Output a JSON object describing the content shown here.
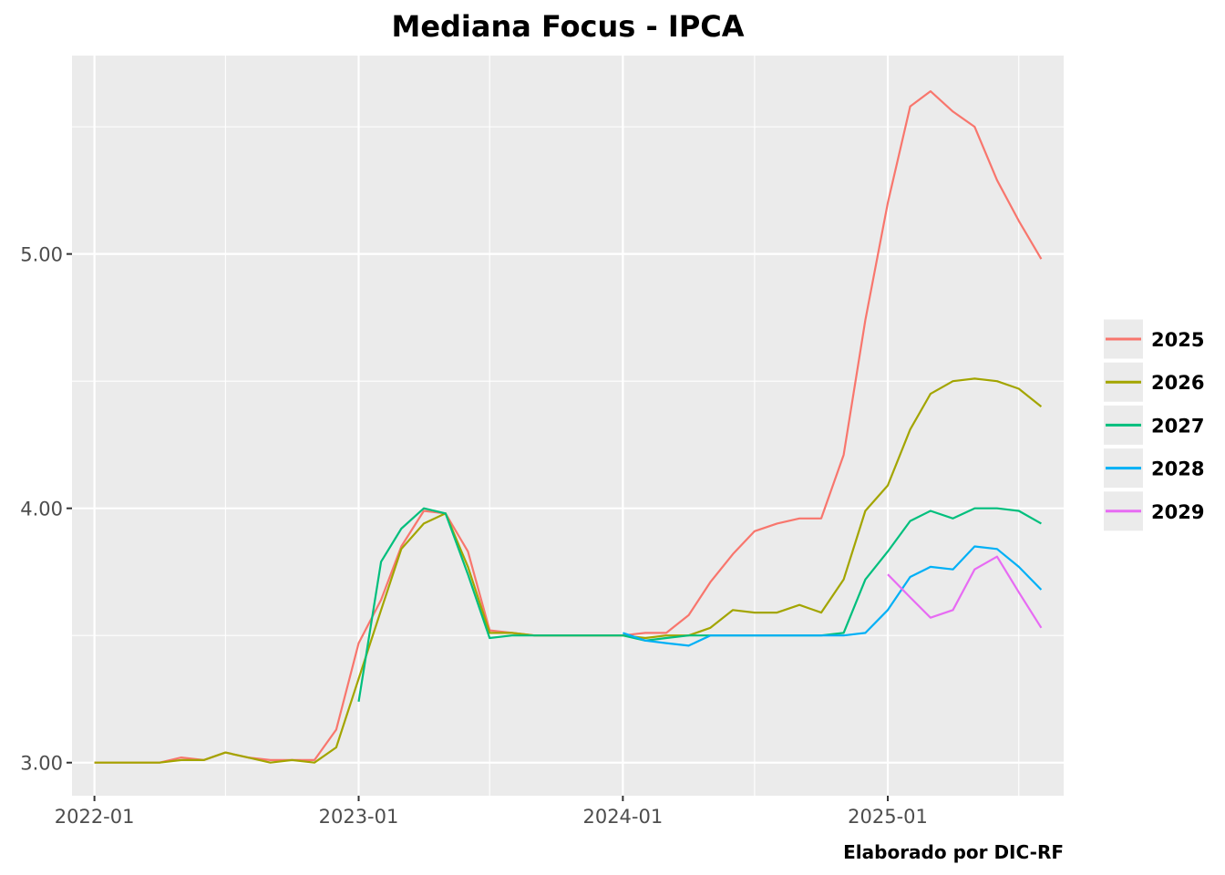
{
  "chart_data": {
    "type": "line",
    "title": "Mediana Focus - IPCA",
    "caption": "Elaborado por DIC-RF",
    "xlabel": "",
    "ylabel": "",
    "x_ticks": [
      "2022-01",
      "2023-01",
      "2024-01",
      "2025-01"
    ],
    "y_ticks": [
      "3.00",
      "4.00",
      "5.00"
    ],
    "xlim": [
      "2021-12-01",
      "2025-09-01"
    ],
    "ylim": [
      2.87,
      5.78
    ],
    "grid": true,
    "legend_position": "right",
    "series": [
      {
        "name": "2025",
        "color": "#F8766D",
        "points": [
          [
            "2024-01-01",
            3.5
          ],
          [
            "2024-02-01",
            3.51
          ],
          [
            "2024-03-01",
            3.51
          ],
          [
            "2024-04-01",
            3.58
          ],
          [
            "2024-05-01",
            3.71
          ],
          [
            "2024-06-01",
            3.82
          ],
          [
            "2024-07-01",
            3.91
          ],
          [
            "2024-08-01",
            3.94
          ],
          [
            "2024-09-01",
            3.96
          ],
          [
            "2024-10-01",
            3.96
          ],
          [
            "2024-11-01",
            4.21
          ],
          [
            "2024-12-01",
            4.74
          ],
          [
            "2025-01-01",
            5.2
          ],
          [
            "2025-02-01",
            5.58
          ],
          [
            "2025-03-01",
            5.64
          ],
          [
            "2025-04-01",
            5.56
          ],
          [
            "2025-05-01",
            5.5
          ],
          [
            "2025-06-01",
            5.29
          ],
          [
            "2025-07-01",
            5.13
          ],
          [
            "2025-08-01",
            4.98
          ]
        ]
      },
      {
        "name": "2026",
        "color": "#A3A500",
        "points": [
          [
            "2024-01-01",
            3.5
          ],
          [
            "2024-02-01",
            3.49
          ],
          [
            "2024-03-01",
            3.5
          ],
          [
            "2024-04-01",
            3.5
          ],
          [
            "2024-05-01",
            3.53
          ],
          [
            "2024-06-01",
            3.6
          ],
          [
            "2024-07-01",
            3.59
          ],
          [
            "2024-08-01",
            3.59
          ],
          [
            "2024-09-01",
            3.62
          ],
          [
            "2024-10-01",
            3.59
          ],
          [
            "2024-11-01",
            3.72
          ],
          [
            "2024-12-01",
            3.99
          ],
          [
            "2025-01-01",
            4.09
          ],
          [
            "2025-02-01",
            4.31
          ],
          [
            "2025-03-01",
            4.45
          ],
          [
            "2025-04-01",
            4.5
          ],
          [
            "2025-05-01",
            4.51
          ],
          [
            "2025-06-01",
            4.5
          ],
          [
            "2025-07-01",
            4.47
          ],
          [
            "2025-08-01",
            4.4
          ]
        ]
      },
      {
        "name": "2027",
        "color": "#00BF7D",
        "points": [
          [
            "2024-01-01",
            3.5
          ],
          [
            "2024-02-01",
            3.48
          ],
          [
            "2024-03-01",
            3.49
          ],
          [
            "2024-04-01",
            3.5
          ],
          [
            "2024-05-01",
            3.5
          ],
          [
            "2024-06-01",
            3.5
          ],
          [
            "2024-07-01",
            3.5
          ],
          [
            "2024-08-01",
            3.5
          ],
          [
            "2024-09-01",
            3.5
          ],
          [
            "2024-10-01",
            3.5
          ],
          [
            "2024-11-01",
            3.51
          ],
          [
            "2024-12-01",
            3.72
          ],
          [
            "2025-01-01",
            3.83
          ],
          [
            "2025-02-01",
            3.95
          ],
          [
            "2025-03-01",
            3.99
          ],
          [
            "2025-04-01",
            3.96
          ],
          [
            "2025-05-01",
            4.0
          ],
          [
            "2025-06-01",
            4.0
          ],
          [
            "2025-07-01",
            3.99
          ],
          [
            "2025-08-01",
            3.94
          ]
        ]
      },
      {
        "name": "2028",
        "color": "#00B0F6",
        "points": [
          [
            "2024-01-01",
            3.51
          ],
          [
            "2024-02-01",
            3.48
          ],
          [
            "2024-03-01",
            3.47
          ],
          [
            "2024-04-01",
            3.46
          ],
          [
            "2024-05-01",
            3.5
          ],
          [
            "2024-06-01",
            3.5
          ],
          [
            "2024-07-01",
            3.5
          ],
          [
            "2024-08-01",
            3.5
          ],
          [
            "2024-09-01",
            3.5
          ],
          [
            "2024-10-01",
            3.5
          ],
          [
            "2024-11-01",
            3.5
          ],
          [
            "2024-12-01",
            3.51
          ],
          [
            "2025-01-01",
            3.6
          ],
          [
            "2025-02-01",
            3.73
          ],
          [
            "2025-03-01",
            3.77
          ],
          [
            "2025-04-01",
            3.76
          ],
          [
            "2025-05-01",
            3.85
          ],
          [
            "2025-06-01",
            3.84
          ],
          [
            "2025-07-01",
            3.77
          ],
          [
            "2025-08-01",
            3.68
          ]
        ]
      },
      {
        "name": "2029",
        "color": "#E76BF3",
        "points": [
          [
            "2025-01-01",
            3.74
          ],
          [
            "2025-02-01",
            3.65
          ],
          [
            "2025-03-01",
            3.57
          ],
          [
            "2025-04-01",
            3.6
          ],
          [
            "2025-05-01",
            3.76
          ],
          [
            "2025-06-01",
            3.81
          ],
          [
            "2025-07-01",
            3.67
          ],
          [
            "2025-08-01",
            3.53
          ]
        ]
      },
      {
        "name": "",
        "color": "#F8766D",
        "points": [
          [
            "2022-01-01",
            3.0
          ],
          [
            "2022-02-01",
            3.0
          ],
          [
            "2022-03-01",
            3.0
          ],
          [
            "2022-04-01",
            3.0
          ],
          [
            "2022-05-01",
            3.02
          ],
          [
            "2022-06-01",
            3.01
          ],
          [
            "2022-07-01",
            3.04
          ],
          [
            "2022-08-01",
            3.02
          ],
          [
            "2022-09-01",
            3.01
          ],
          [
            "2022-10-01",
            3.01
          ],
          [
            "2022-11-01",
            3.01
          ],
          [
            "2022-12-01",
            3.13
          ],
          [
            "2023-01-01",
            3.47
          ],
          [
            "2023-02-01",
            3.64
          ],
          [
            "2023-03-01",
            3.85
          ],
          [
            "2023-04-01",
            3.99
          ],
          [
            "2023-05-01",
            3.98
          ],
          [
            "2023-06-01",
            3.83
          ],
          [
            "2023-07-01",
            3.52
          ],
          [
            "2023-08-01",
            3.51
          ],
          [
            "2023-09-01",
            3.5
          ],
          [
            "2023-10-01",
            3.5
          ],
          [
            "2023-11-01",
            3.5
          ],
          [
            "2023-12-01",
            3.5
          ],
          [
            "2024-01-01",
            3.5
          ]
        ]
      },
      {
        "name": "",
        "color": "#A3A500",
        "points": [
          [
            "2022-01-01",
            3.0
          ],
          [
            "2022-02-01",
            3.0
          ],
          [
            "2022-03-01",
            3.0
          ],
          [
            "2022-04-01",
            3.0
          ],
          [
            "2022-05-01",
            3.01
          ],
          [
            "2022-06-01",
            3.01
          ],
          [
            "2022-07-01",
            3.04
          ],
          [
            "2022-08-01",
            3.02
          ],
          [
            "2022-09-01",
            3.0
          ],
          [
            "2022-10-01",
            3.01
          ],
          [
            "2022-11-01",
            3.0
          ],
          [
            "2022-12-01",
            3.06
          ],
          [
            "2023-01-01",
            3.33
          ],
          [
            "2023-02-01",
            3.6
          ],
          [
            "2023-03-01",
            3.84
          ],
          [
            "2023-04-01",
            3.94
          ],
          [
            "2023-05-01",
            3.98
          ],
          [
            "2023-06-01",
            3.77
          ],
          [
            "2023-07-01",
            3.51
          ],
          [
            "2023-08-01",
            3.51
          ],
          [
            "2023-09-01",
            3.5
          ],
          [
            "2023-10-01",
            3.5
          ],
          [
            "2023-11-01",
            3.5
          ],
          [
            "2023-12-01",
            3.5
          ],
          [
            "2024-01-01",
            3.5
          ]
        ]
      },
      {
        "name": "",
        "color": "#00BF7D",
        "points": [
          [
            "2023-01-01",
            3.24
          ],
          [
            "2023-02-01",
            3.79
          ],
          [
            "2023-03-01",
            3.92
          ],
          [
            "2023-04-01",
            4.0
          ],
          [
            "2023-05-01",
            3.98
          ],
          [
            "2023-06-01",
            3.74
          ],
          [
            "2023-07-01",
            3.49
          ],
          [
            "2023-08-01",
            3.5
          ],
          [
            "2023-09-01",
            3.5
          ],
          [
            "2023-10-01",
            3.5
          ],
          [
            "2023-11-01",
            3.5
          ],
          [
            "2023-12-01",
            3.5
          ],
          [
            "2024-01-01",
            3.5
          ]
        ]
      }
    ]
  }
}
